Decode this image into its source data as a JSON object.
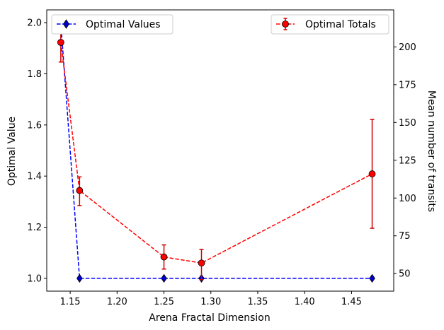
{
  "chart_data": {
    "type": "line",
    "xlabel": "Arena Fractal Dimension",
    "ylabel_left": "Optimal Value",
    "ylabel_right": "Mean number of transits",
    "xlim": [
      1.125,
      1.495
    ],
    "ylim_left": [
      0.95,
      2.05
    ],
    "ylim_right": [
      38.4,
      224.5
    ],
    "x_ticks": [
      1.15,
      1.2,
      1.25,
      1.3,
      1.35,
      1.4,
      1.45
    ],
    "x_tick_labels": [
      "1.15",
      "1.20",
      "1.25",
      "1.30",
      "1.35",
      "1.40",
      "1.45"
    ],
    "y_left_ticks": [
      1.0,
      1.2,
      1.4,
      1.6,
      1.8,
      2.0
    ],
    "y_left_tick_labels": [
      "1.0",
      "1.2",
      "1.4",
      "1.6",
      "1.8",
      "2.0"
    ],
    "y_right_ticks": [
      50,
      75,
      100,
      125,
      150,
      175,
      200
    ],
    "y_right_tick_labels": [
      "50",
      "75",
      "100",
      "125",
      "150",
      "175",
      "200"
    ],
    "grid": false,
    "series": [
      {
        "name": "Optimal Values",
        "axis": "left",
        "color": "#0000ff",
        "marker": "diamond",
        "marker_face": "#0000cd",
        "linestyle": "dashed",
        "x": [
          1.14,
          1.16,
          1.25,
          1.29,
          1.472
        ],
        "y": [
          2.0,
          1.0,
          1.0,
          1.0,
          1.0
        ]
      },
      {
        "name": "Optimal Totals",
        "axis": "right",
        "color": "#ff0000",
        "marker": "circle",
        "marker_face": "#ff0000",
        "ecolor": "#cc0000",
        "linestyle": "dashed",
        "x": [
          1.14,
          1.16,
          1.25,
          1.29,
          1.472
        ],
        "y": [
          203,
          105,
          61,
          57,
          116
        ],
        "yerr_low": [
          190,
          95,
          53,
          46,
          80
        ],
        "yerr_high": [
          215,
          114,
          69,
          66,
          152
        ]
      }
    ],
    "legend": [
      {
        "label": "Optimal Values",
        "placement": "top-left"
      },
      {
        "label": "Optimal Totals",
        "placement": "top-right"
      }
    ]
  }
}
